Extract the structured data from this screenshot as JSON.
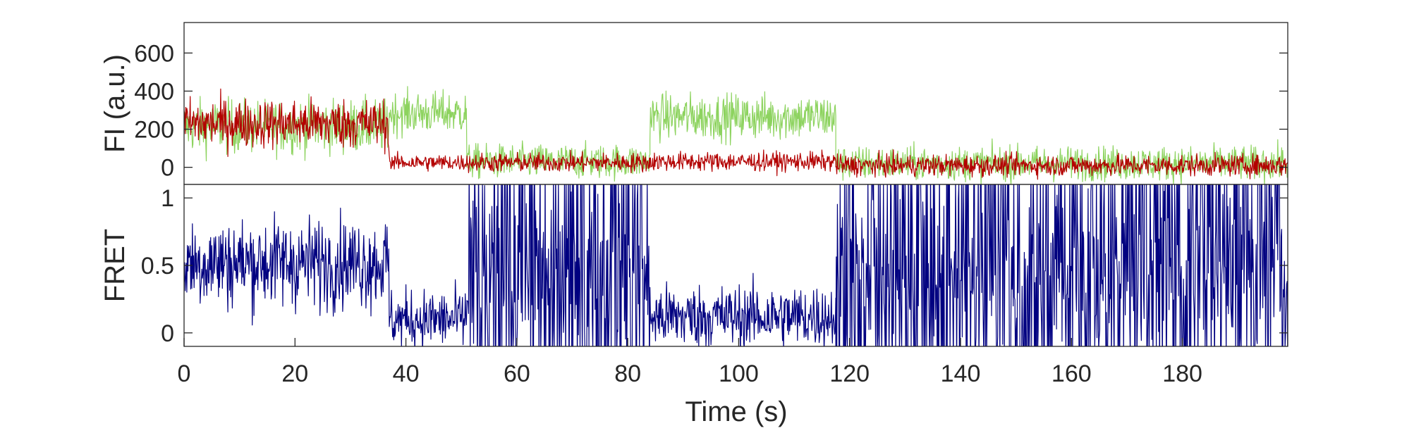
{
  "chart_data": [
    {
      "type": "line",
      "ylabel": "FI (a.u.)",
      "xlim": [
        0,
        199
      ],
      "ylim": [
        -90,
        760
      ],
      "yticks": [
        0,
        200,
        400,
        600
      ],
      "grid": false,
      "series": [
        {
          "color": "#8dd35f",
          "segments": [
            {
              "x": [
                0,
                37
              ],
              "mean": 215,
              "noise": 70
            },
            {
              "x": [
                37,
                51
              ],
              "mean": 285,
              "noise": 55
            },
            {
              "x": [
                51,
                84
              ],
              "mean": 30,
              "noise": 45
            },
            {
              "x": [
                84,
                117.5
              ],
              "mean": 265,
              "noise": 60
            },
            {
              "x": [
                117.5,
                199
              ],
              "mean": 20,
              "noise": 45
            }
          ]
        },
        {
          "color": "#b30000",
          "segments": [
            {
              "x": [
                0,
                37
              ],
              "mean": 230,
              "noise": 65
            },
            {
              "x": [
                37,
                51
              ],
              "mean": 25,
              "noise": 22
            },
            {
              "x": [
                51,
                84
              ],
              "mean": 25,
              "noise": 25
            },
            {
              "x": [
                84,
                117.5
              ],
              "mean": 30,
              "noise": 25
            },
            {
              "x": [
                117.5,
                199
              ],
              "mean": 10,
              "noise": 28
            }
          ]
        }
      ]
    },
    {
      "type": "line",
      "ylabel": "FRET",
      "xlabel": "Time (s)",
      "xlim": [
        0,
        199
      ],
      "ylim": [
        -0.1,
        1.1
      ],
      "yticks": [
        0,
        0.5,
        1
      ],
      "xticks": [
        0,
        20,
        40,
        60,
        80,
        100,
        120,
        140,
        160,
        180
      ],
      "grid": false,
      "series": [
        {
          "color": "#000080",
          "segments": [
            {
              "x": [
                0,
                37
              ],
              "mean": 0.52,
              "noise": 0.17,
              "noisy": false
            },
            {
              "x": [
                37,
                51
              ],
              "mean": 0.1,
              "noise": 0.11,
              "noisy": false
            },
            {
              "x": [
                51,
                84
              ],
              "mean": 0.45,
              "noise": 0.55,
              "noisy": true
            },
            {
              "x": [
                84,
                117.5
              ],
              "mean": 0.12,
              "noise": 0.12,
              "noisy": false
            },
            {
              "x": [
                117.5,
                199
              ],
              "mean": 0.45,
              "noise": 0.55,
              "noisy": true
            }
          ]
        }
      ]
    }
  ]
}
